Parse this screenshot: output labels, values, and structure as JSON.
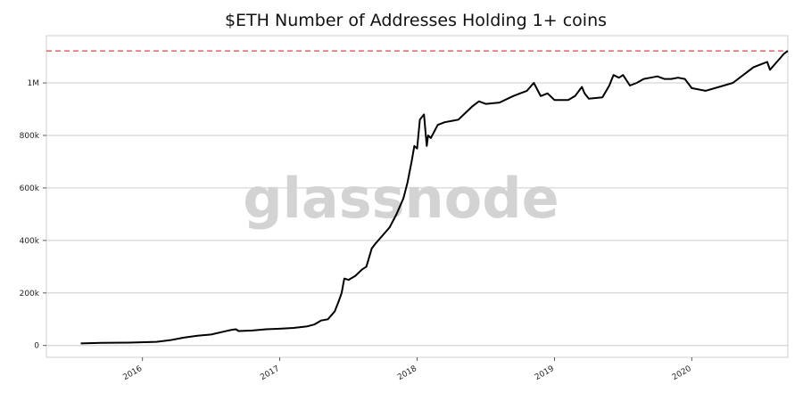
{
  "chart_data": {
    "type": "line",
    "title": "$ETH Number of Addresses Holding 1+ coins",
    "watermark": "glassnode",
    "xlabel": "",
    "ylabel": "",
    "xlim": [
      2015.3,
      2020.7
    ],
    "ylim": [
      -45000,
      1180000
    ],
    "x_ticks": [
      {
        "value": 2016,
        "label": "2016"
      },
      {
        "value": 2017,
        "label": "2017"
      },
      {
        "value": 2018,
        "label": "2018"
      },
      {
        "value": 2019,
        "label": "2019"
      },
      {
        "value": 2020,
        "label": "2020"
      }
    ],
    "y_ticks": [
      {
        "value": 0,
        "label": "0"
      },
      {
        "value": 200000,
        "label": "200k"
      },
      {
        "value": 400000,
        "label": "400k"
      },
      {
        "value": 600000,
        "label": "600k"
      },
      {
        "value": 800000,
        "label": "800k"
      },
      {
        "value": 1000000,
        "label": "1M"
      }
    ],
    "grid": "horizontal",
    "reference_line": {
      "value": 1122000,
      "color": "#e0454a",
      "style": "dashed"
    },
    "series": [
      {
        "color": "#000000",
        "points": [
          [
            2015.55,
            8000
          ],
          [
            2015.7,
            10000
          ],
          [
            2015.9,
            11000
          ],
          [
            2016.1,
            14000
          ],
          [
            2016.2,
            20000
          ],
          [
            2016.3,
            30000
          ],
          [
            2016.4,
            37000
          ],
          [
            2016.5,
            42000
          ],
          [
            2016.6,
            54000
          ],
          [
            2016.65,
            60000
          ],
          [
            2016.68,
            62000
          ],
          [
            2016.7,
            55000
          ],
          [
            2016.8,
            57000
          ],
          [
            2016.9,
            62000
          ],
          [
            2017.0,
            64000
          ],
          [
            2017.1,
            67000
          ],
          [
            2017.2,
            73000
          ],
          [
            2017.25,
            80000
          ],
          [
            2017.3,
            95000
          ],
          [
            2017.35,
            100000
          ],
          [
            2017.4,
            130000
          ],
          [
            2017.43,
            170000
          ],
          [
            2017.45,
            200000
          ],
          [
            2017.47,
            255000
          ],
          [
            2017.5,
            250000
          ],
          [
            2017.55,
            265000
          ],
          [
            2017.6,
            290000
          ],
          [
            2017.63,
            300000
          ],
          [
            2017.67,
            370000
          ],
          [
            2017.7,
            390000
          ],
          [
            2017.75,
            420000
          ],
          [
            2017.8,
            450000
          ],
          [
            2017.85,
            500000
          ],
          [
            2017.9,
            560000
          ],
          [
            2017.93,
            620000
          ],
          [
            2017.96,
            700000
          ],
          [
            2017.98,
            760000
          ],
          [
            2018.0,
            750000
          ],
          [
            2018.02,
            860000
          ],
          [
            2018.05,
            880000
          ],
          [
            2018.07,
            760000
          ],
          [
            2018.08,
            800000
          ],
          [
            2018.1,
            790000
          ],
          [
            2018.15,
            840000
          ],
          [
            2018.2,
            850000
          ],
          [
            2018.3,
            860000
          ],
          [
            2018.4,
            910000
          ],
          [
            2018.45,
            930000
          ],
          [
            2018.5,
            920000
          ],
          [
            2018.6,
            925000
          ],
          [
            2018.7,
            950000
          ],
          [
            2018.75,
            960000
          ],
          [
            2018.8,
            970000
          ],
          [
            2018.85,
            1000000
          ],
          [
            2018.9,
            950000
          ],
          [
            2018.95,
            960000
          ],
          [
            2019.0,
            935000
          ],
          [
            2019.1,
            935000
          ],
          [
            2019.15,
            950000
          ],
          [
            2019.2,
            985000
          ],
          [
            2019.22,
            960000
          ],
          [
            2019.25,
            940000
          ],
          [
            2019.35,
            945000
          ],
          [
            2019.4,
            990000
          ],
          [
            2019.43,
            1030000
          ],
          [
            2019.47,
            1020000
          ],
          [
            2019.5,
            1030000
          ],
          [
            2019.55,
            990000
          ],
          [
            2019.6,
            1000000
          ],
          [
            2019.65,
            1015000
          ],
          [
            2019.7,
            1020000
          ],
          [
            2019.75,
            1025000
          ],
          [
            2019.8,
            1015000
          ],
          [
            2019.85,
            1015000
          ],
          [
            2019.9,
            1020000
          ],
          [
            2019.95,
            1015000
          ],
          [
            2020.0,
            980000
          ],
          [
            2020.1,
            970000
          ],
          [
            2020.2,
            985000
          ],
          [
            2020.3,
            1000000
          ],
          [
            2020.4,
            1040000
          ],
          [
            2020.45,
            1060000
          ],
          [
            2020.5,
            1070000
          ],
          [
            2020.55,
            1080000
          ],
          [
            2020.57,
            1050000
          ],
          [
            2020.62,
            1080000
          ],
          [
            2020.67,
            1110000
          ],
          [
            2020.7,
            1122000
          ]
        ]
      }
    ]
  }
}
